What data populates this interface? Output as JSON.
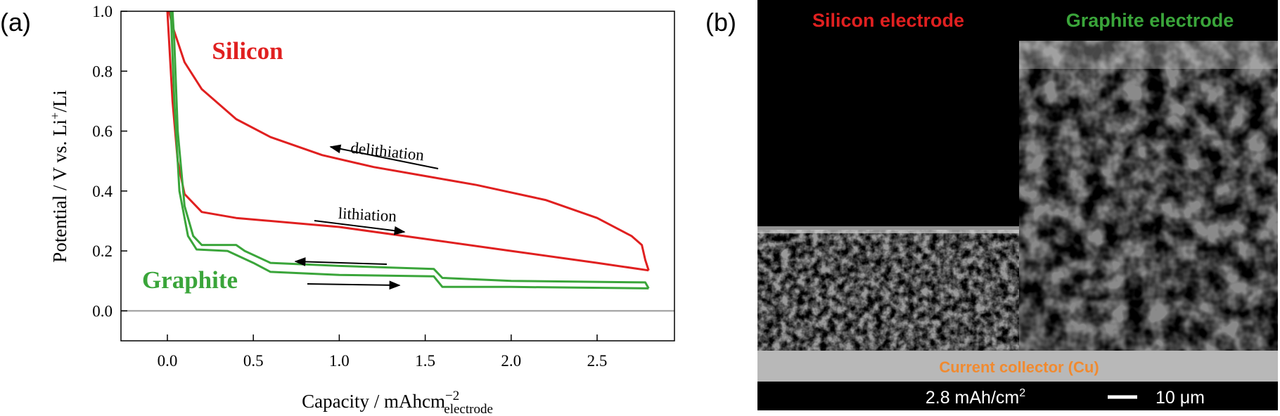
{
  "panel_labels": {
    "a": "(a)",
    "b": "(b)"
  },
  "chart_data": {
    "type": "line",
    "xlabel": {
      "text": "Capacity / mAhcm",
      "sup": "−2",
      "sub": "electrode"
    },
    "ylabel": {
      "text": "Potential / V vs. Li",
      "sup": "+",
      "tail": "/Li"
    },
    "xlim": [
      -0.27,
      2.95
    ],
    "ylim": [
      -0.1,
      1.0
    ],
    "xticks": [
      {
        "value": 0,
        "label": "0.0"
      },
      0.5,
      {
        "value": 1,
        "label": "1.0"
      },
      1.5,
      {
        "value": 2,
        "label": "2.0"
      },
      2.5
    ],
    "yticks": [
      {
        "value": 0,
        "label": "0.0"
      },
      0.2,
      0.4,
      0.6,
      0.8,
      {
        "value": 1,
        "label": "1.0"
      }
    ],
    "zero_line": {
      "value": 0,
      "color": "#999999"
    },
    "annotations": {
      "silicon": "Silicon",
      "graphite": "Graphite",
      "delithiation": "delithiation",
      "lithiation": "lithiation"
    },
    "series": [
      {
        "color": "#e02020",
        "x": [
          2.8,
          2.78,
          2.76,
          2.7,
          2.5,
          2.2,
          1.8,
          1.5,
          1.2,
          0.9,
          0.6,
          0.4,
          0.2,
          0.1,
          0.03,
          0.01
        ],
        "values": [
          0.135,
          0.17,
          0.22,
          0.25,
          0.31,
          0.37,
          0.42,
          0.45,
          0.48,
          0.52,
          0.58,
          0.64,
          0.74,
          0.83,
          0.95,
          1.0
        ]
      },
      {
        "color": "#e02020",
        "x": [
          0.0,
          0.03,
          0.06,
          0.1,
          0.2,
          0.4,
          1.0,
          1.5,
          2.0,
          2.5,
          2.8
        ],
        "values": [
          1.0,
          0.7,
          0.5,
          0.39,
          0.33,
          0.31,
          0.28,
          0.24,
          0.2,
          0.16,
          0.135
        ]
      },
      {
        "color": "#3aa53a",
        "x": [
          2.8,
          2.78,
          2.0,
          1.6,
          1.55,
          1.0,
          0.6,
          0.45,
          0.4,
          0.2,
          0.15,
          0.1,
          0.06,
          0.04,
          0.03
        ],
        "values": [
          0.075,
          0.095,
          0.1,
          0.11,
          0.14,
          0.15,
          0.16,
          0.2,
          0.22,
          0.22,
          0.25,
          0.35,
          0.6,
          0.9,
          1.0
        ]
      },
      {
        "color": "#3aa53a",
        "x": [
          0.02,
          0.04,
          0.07,
          0.12,
          0.17,
          0.35,
          0.5,
          0.6,
          1.0,
          1.55,
          1.6,
          2.0,
          2.8
        ],
        "values": [
          1.0,
          0.7,
          0.4,
          0.25,
          0.205,
          0.2,
          0.16,
          0.13,
          0.12,
          0.115,
          0.08,
          0.08,
          0.075
        ]
      }
    ]
  },
  "image_labels": {
    "silicon": "Silicon electrode",
    "graphite": "Graphite electrode",
    "collector": "Current collector (Cu)",
    "loading": {
      "text": "2.8 mAh/cm",
      "sup": "2"
    },
    "scale": "10 μm"
  }
}
